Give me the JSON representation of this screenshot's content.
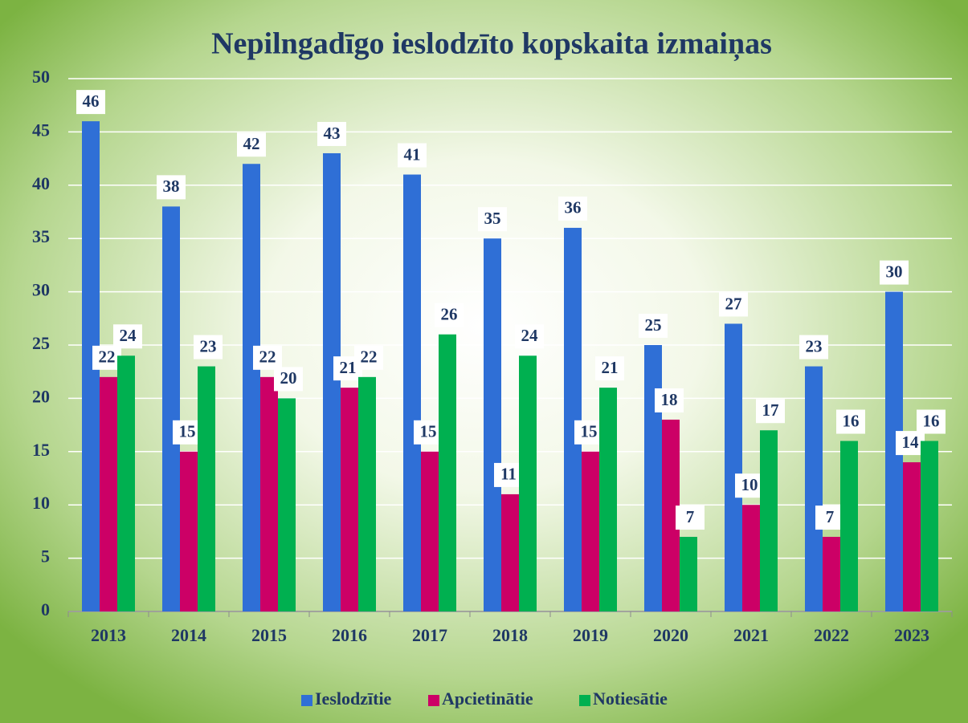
{
  "chart_data": {
    "type": "bar",
    "title": "Nepilngadīgo ieslodzīto kopskaita izmaiņas",
    "categories": [
      "2013",
      "2014",
      "2015",
      "2016",
      "2017",
      "2018",
      "2019",
      "2020",
      "2021",
      "2022",
      "2023"
    ],
    "series": [
      {
        "name": "Ieslodzītie",
        "color": "#2f6fd6",
        "values": [
          46,
          38,
          42,
          43,
          41,
          35,
          36,
          25,
          27,
          23,
          30
        ]
      },
      {
        "name": "Apcietinātie",
        "color": "#cc0066",
        "values": [
          22,
          15,
          22,
          21,
          15,
          11,
          15,
          18,
          10,
          7,
          14
        ]
      },
      {
        "name": "Notiesātie",
        "color": "#00b050",
        "values": [
          24,
          23,
          20,
          22,
          26,
          24,
          21,
          7,
          17,
          16,
          16
        ]
      }
    ],
    "ylim": [
      0,
      50
    ],
    "yticks": [
      0,
      5,
      10,
      15,
      20,
      25,
      30,
      35,
      40,
      45,
      50
    ],
    "grid": true,
    "legend": "bottom"
  }
}
